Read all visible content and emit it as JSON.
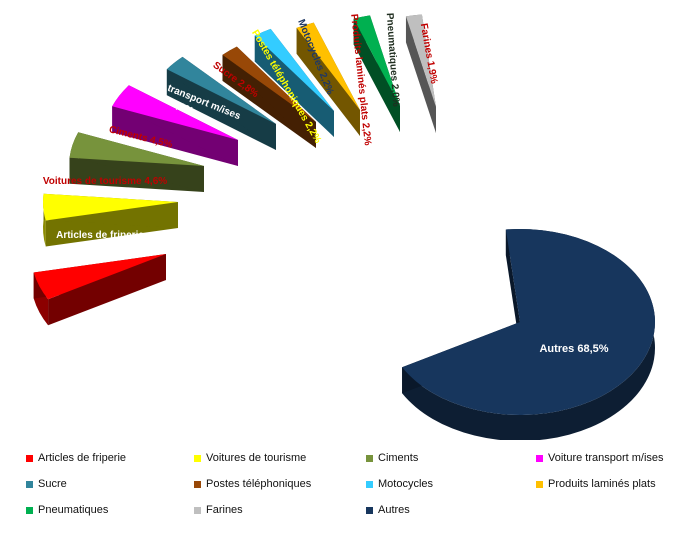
{
  "chart_data": {
    "type": "pie",
    "title": "",
    "style": "3d-exploded",
    "legend_position": "bottom",
    "slices": [
      {
        "name": "Articles de friperie",
        "label": "Articles de friperie 4,9%",
        "value": 4.9,
        "color": "#ff0000"
      },
      {
        "name": "Voitures de tourisme",
        "label": "Voitures de tourisme 4,6%",
        "value": 4.6,
        "color": "#ffff00"
      },
      {
        "name": "Ciments",
        "label": "Ciments 4,5%",
        "value": 4.5,
        "color": "#77933c"
      },
      {
        "name": "Voiture transport m/ises",
        "label": "Voiture transport m/ises 4,1%",
        "value": 4.1,
        "color": "#ff00ff"
      },
      {
        "name": "Sucre",
        "label": "Sucre 2,8%",
        "value": 2.8,
        "color": "#31859c"
      },
      {
        "name": "Postes téléphoniques",
        "label": "Postes téléphoniques 2,2%",
        "value": 2.2,
        "color": "#984807"
      },
      {
        "name": "Motocycles",
        "label": "Motocycles 2,2%",
        "value": 2.2,
        "color": "#33ccff"
      },
      {
        "name": "Produits laminés plats",
        "label": "Produits laminés plats 2,2%",
        "value": 2.2,
        "color": "#ffc000"
      },
      {
        "name": "Pneumatiques",
        "label": "Pneumatiques 2,0%",
        "value": 2.0,
        "color": "#00b050"
      },
      {
        "name": "Farines",
        "label": "Farines 1,9%",
        "value": 1.9,
        "color": "#bfbfbf"
      },
      {
        "name": "Autres",
        "label": "Autres 68,5%",
        "value": 68.5,
        "color": "#17365d"
      }
    ]
  }
}
